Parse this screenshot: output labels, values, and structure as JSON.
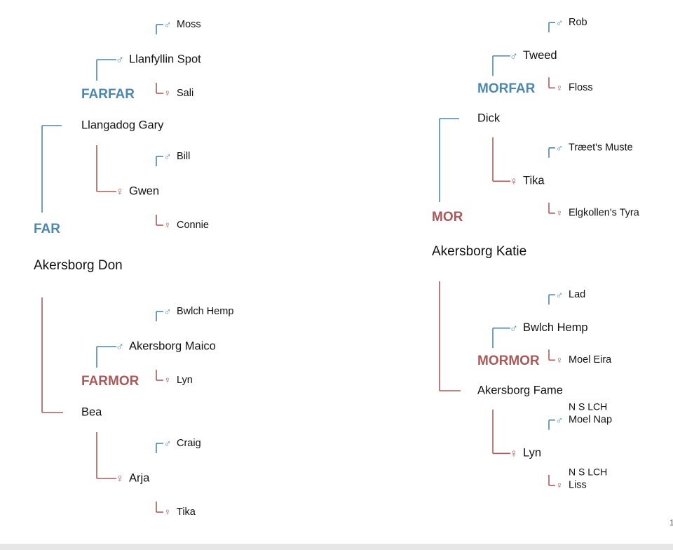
{
  "sides": [
    {
      "label": "FAR",
      "label_color": "#4d87ab",
      "name": "Akersborg Don",
      "grandparents": [
        {
          "label": "FARFAR",
          "label_color": "#4d87ab",
          "name": "Llangadog Gary",
          "parents": [
            {
              "symbol": "♂",
              "color": "#4d87ab",
              "name": "Llanfyllin Spot",
              "parents": [
                {
                  "symbol": "♂",
                  "color": "#4d87ab",
                  "name": "Moss"
                },
                {
                  "symbol": "♀",
                  "color": "#a85a5a",
                  "name": "Sali"
                }
              ]
            },
            {
              "symbol": "♀",
              "color": "#a85a5a",
              "name": "Gwen",
              "parents": [
                {
                  "symbol": "♂",
                  "color": "#4d87ab",
                  "name": "Bill"
                },
                {
                  "symbol": "♀",
                  "color": "#a85a5a",
                  "name": "Connie"
                }
              ]
            }
          ]
        },
        {
          "label": "FARMOR",
          "label_color": "#a85a5a",
          "name": "Bea",
          "parents": [
            {
              "symbol": "♂",
              "color": "#4d87ab",
              "name": "Akersborg Maico",
              "parents": [
                {
                  "symbol": "♂",
                  "color": "#4d87ab",
                  "name": "Bwlch Hemp"
                },
                {
                  "symbol": "♀",
                  "color": "#a85a5a",
                  "name": "Lyn"
                }
              ]
            },
            {
              "symbol": "♀",
              "color": "#a85a5a",
              "name": "Arja",
              "parents": [
                {
                  "symbol": "♂",
                  "color": "#4d87ab",
                  "name": "Craig"
                },
                {
                  "symbol": "♀",
                  "color": "#a85a5a",
                  "name": "Tika"
                }
              ]
            }
          ]
        }
      ]
    },
    {
      "label": "MOR",
      "label_color": "#a85a5a",
      "name": "Akersborg Katie",
      "grandparents": [
        {
          "label": "MORFAR",
          "label_color": "#4d87ab",
          "name": "Dick",
          "parents": [
            {
              "symbol": "♂",
              "color": "#4d87ab",
              "name": "Tweed",
              "parents": [
                {
                  "symbol": "♂",
                  "color": "#4d87ab",
                  "name": "Rob"
                },
                {
                  "symbol": "♀",
                  "color": "#a85a5a",
                  "name": "Floss"
                }
              ]
            },
            {
              "symbol": "♀",
              "color": "#a85a5a",
              "name": "Tika",
              "parents": [
                {
                  "symbol": "♂",
                  "color": "#4d87ab",
                  "name": "Træet's Muste"
                },
                {
                  "symbol": "♀",
                  "color": "#a85a5a",
                  "name": "Elgkollen's Tyra"
                }
              ]
            }
          ]
        },
        {
          "label": "MORMOR",
          "label_color": "#a85a5a",
          "name": "Akersborg Fame",
          "parents": [
            {
              "symbol": "♂",
              "color": "#4d87ab",
              "name": "Bwlch Hemp",
              "parents": [
                {
                  "symbol": "♂",
                  "color": "#4d87ab",
                  "name": "Lad"
                },
                {
                  "symbol": "♀",
                  "color": "#a85a5a",
                  "name": "Moel Eira"
                }
              ]
            },
            {
              "symbol": "♀",
              "color": "#a85a5a",
              "name": "Lyn",
              "parents": [
                {
                  "symbol": "♂",
                  "color": "#4d87ab",
                  "name": "Moel Nap",
                  "title": "N S LCH"
                },
                {
                  "symbol": "♀",
                  "color": "#a85a5a",
                  "name": "Liss",
                  "title": "N S LCH"
                }
              ]
            }
          ]
        }
      ]
    }
  ],
  "page_number": "1"
}
